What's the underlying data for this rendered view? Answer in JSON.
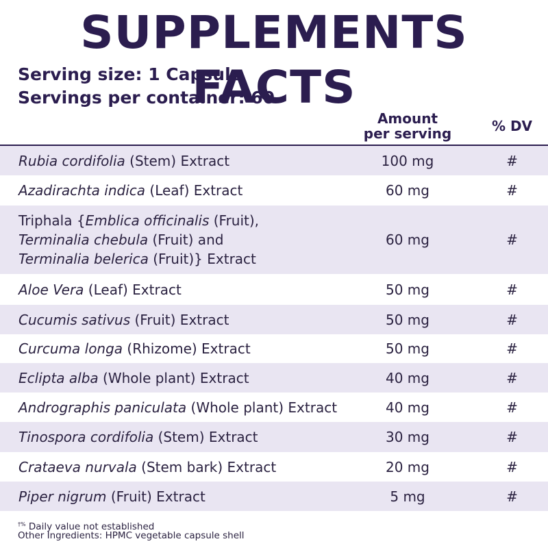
{
  "title": "SUPPLEMENTS FACTS",
  "serving_size": "Serving size: 1 Capsule",
  "servings_per_container": "Servings per container: 60",
  "headers": {
    "amount_line1": "Amount",
    "amount_line2": "per serving",
    "dv": "% DV"
  },
  "rows": [
    {
      "latin": "Rubia cordifolia",
      "rest": " (Stem) Extract",
      "amount": "100 mg",
      "dv": "#"
    },
    {
      "latin": "Azadirachta indica",
      "rest": " (Leaf) Extract",
      "amount": "60 mg",
      "dv": "#"
    },
    {
      "l1_prefix": "Triphala {",
      "l1_latin": "Emblica officinalis",
      "l1_rest": " (Fruit),",
      "l2_latin": "Terminalia chebula",
      "l2_rest": " (Fruit) and",
      "l3_latin": "Terminalia belerica",
      "l3_rest": " (Fruit)} Extract",
      "amount": "60 mg",
      "dv": "#"
    },
    {
      "latin": "Aloe Vera",
      "rest": " (Leaf) Extract",
      "amount": "50 mg",
      "dv": "#"
    },
    {
      "latin": "Cucumis sativus",
      "rest": " (Fruit) Extract",
      "amount": "50 mg",
      "dv": "#"
    },
    {
      "latin": "Curcuma longa",
      "rest": " (Rhizome) Extract",
      "amount": "50 mg",
      "dv": "#"
    },
    {
      "latin": "Eclipta alba",
      "rest": " (Whole plant) Extract",
      "amount": "40 mg",
      "dv": "#"
    },
    {
      "latin": "Andrographis paniculata",
      "rest": " (Whole plant) Extract",
      "amount": "40 mg",
      "dv": "#"
    },
    {
      "latin": "Tinospora cordifolia",
      "rest": " (Stem) Extract",
      "amount": "30 mg",
      "dv": "#"
    },
    {
      "latin": "Crataeva nurvala",
      "rest": " (Stem bark) Extract",
      "amount": "20 mg",
      "dv": "#"
    },
    {
      "latin": "Piper nigrum",
      "rest": " (Fruit) Extract",
      "amount": "5 mg",
      "dv": "#"
    }
  ],
  "footer": {
    "note_mark": "†%",
    "note_text": " Daily value not established",
    "other_ingredients": "Other Ingredients: HPMC vegetable capsule shell"
  },
  "colors": {
    "title": "#2b1d4f",
    "shade": "#e9e5f2"
  }
}
